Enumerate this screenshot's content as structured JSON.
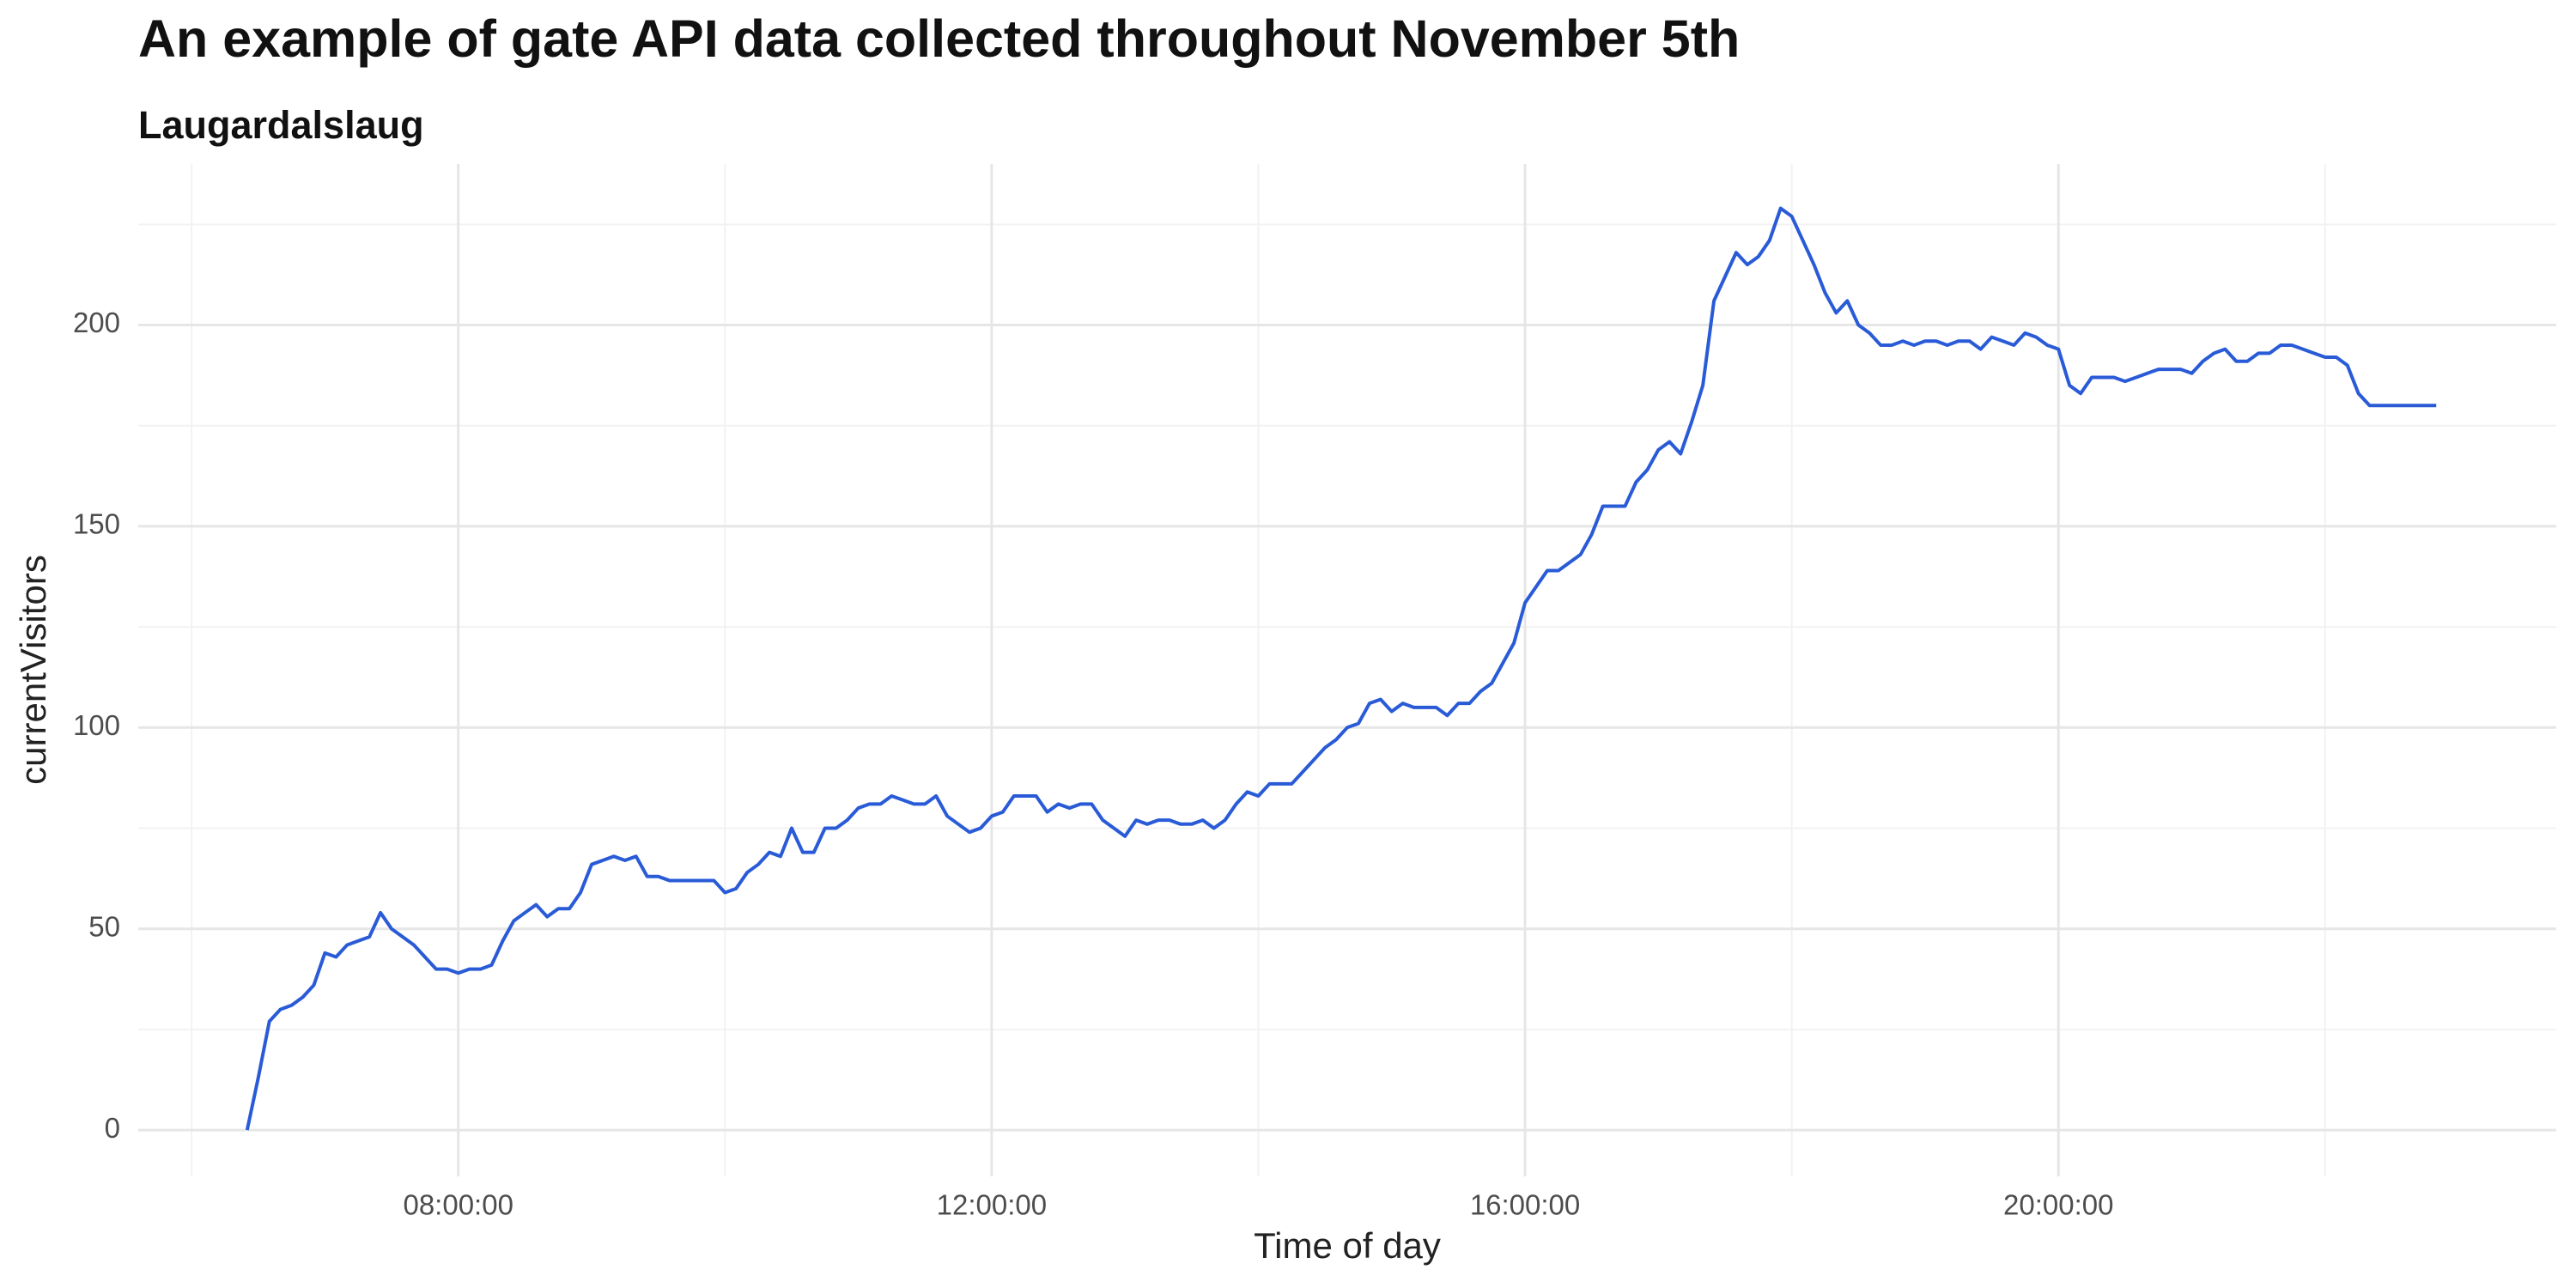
{
  "chart_data": {
    "type": "line",
    "title": "An example of gate API data collected throughout November 5th",
    "subtitle": "Laugardalslaug",
    "x_label": "Time of day",
    "y_label": "currentVisitors",
    "color": "#2a5bd7",
    "grid": true,
    "xlim": [
      "05:36:00",
      "23:44:00"
    ],
    "xticks": [
      "08:00:00",
      "12:00:00",
      "16:00:00",
      "20:00:00"
    ],
    "ylim": [
      -11.5,
      240
    ],
    "yticks": [
      0,
      50,
      100,
      150,
      200
    ],
    "x": [
      "06:25:00",
      "06:30:00",
      "06:35:00",
      "06:40:00",
      "06:45:00",
      "06:50:00",
      "06:55:00",
      "07:00:00",
      "07:05:00",
      "07:10:00",
      "07:15:00",
      "07:20:00",
      "07:25:00",
      "07:30:00",
      "07:35:00",
      "07:40:00",
      "07:45:00",
      "07:50:00",
      "07:55:00",
      "08:00:00",
      "08:05:00",
      "08:10:00",
      "08:15:00",
      "08:20:00",
      "08:25:00",
      "08:30:00",
      "08:35:00",
      "08:40:00",
      "08:45:00",
      "08:50:00",
      "08:55:00",
      "09:00:00",
      "09:05:00",
      "09:10:00",
      "09:15:00",
      "09:20:00",
      "09:25:00",
      "09:30:00",
      "09:35:00",
      "09:40:00",
      "09:45:00",
      "09:50:00",
      "09:55:00",
      "10:00:00",
      "10:05:00",
      "10:10:00",
      "10:15:00",
      "10:20:00",
      "10:25:00",
      "10:30:00",
      "10:35:00",
      "10:40:00",
      "10:45:00",
      "10:50:00",
      "10:55:00",
      "11:00:00",
      "11:05:00",
      "11:10:00",
      "11:15:00",
      "11:20:00",
      "11:25:00",
      "11:30:00",
      "11:35:00",
      "11:40:00",
      "11:45:00",
      "11:50:00",
      "11:55:00",
      "12:00:00",
      "12:05:00",
      "12:10:00",
      "12:15:00",
      "12:20:00",
      "12:25:00",
      "12:30:00",
      "12:35:00",
      "12:40:00",
      "12:45:00",
      "12:50:00",
      "12:55:00",
      "13:00:00",
      "13:05:00",
      "13:10:00",
      "13:15:00",
      "13:20:00",
      "13:25:00",
      "13:30:00",
      "13:35:00",
      "13:40:00",
      "13:45:00",
      "13:50:00",
      "13:55:00",
      "14:00:00",
      "14:05:00",
      "14:10:00",
      "14:15:00",
      "14:20:00",
      "14:25:00",
      "14:30:00",
      "14:35:00",
      "14:40:00",
      "14:45:00",
      "14:50:00",
      "14:55:00",
      "15:00:00",
      "15:05:00",
      "15:10:00",
      "15:15:00",
      "15:20:00",
      "15:25:00",
      "15:30:00",
      "15:35:00",
      "15:40:00",
      "15:45:00",
      "15:50:00",
      "15:55:00",
      "16:00:00",
      "16:05:00",
      "16:10:00",
      "16:15:00",
      "16:20:00",
      "16:25:00",
      "16:30:00",
      "16:35:00",
      "16:40:00",
      "16:45:00",
      "16:50:00",
      "16:55:00",
      "17:00:00",
      "17:05:00",
      "17:10:00",
      "17:15:00",
      "17:20:00",
      "17:25:00",
      "17:30:00",
      "17:35:00",
      "17:40:00",
      "17:45:00",
      "17:50:00",
      "17:55:00",
      "18:00:00",
      "18:05:00",
      "18:10:00",
      "18:15:00",
      "18:20:00",
      "18:25:00",
      "18:30:00",
      "18:35:00",
      "18:40:00",
      "18:45:00",
      "18:50:00",
      "18:55:00",
      "19:00:00",
      "19:05:00",
      "19:10:00",
      "19:15:00",
      "19:20:00",
      "19:25:00",
      "19:30:00",
      "19:35:00",
      "19:40:00",
      "19:45:00",
      "19:50:00",
      "19:55:00",
      "20:00:00",
      "20:05:00",
      "20:10:00",
      "20:15:00",
      "20:20:00",
      "20:25:00",
      "20:30:00",
      "20:35:00",
      "20:40:00",
      "20:45:00",
      "20:50:00",
      "20:55:00",
      "21:00:00",
      "21:05:00",
      "21:10:00",
      "21:15:00",
      "21:20:00",
      "21:25:00",
      "21:30:00",
      "21:35:00",
      "21:40:00",
      "21:45:00",
      "21:50:00",
      "21:55:00",
      "22:00:00",
      "22:05:00",
      "22:10:00",
      "22:15:00",
      "22:20:00",
      "22:25:00",
      "22:30:00",
      "22:35:00",
      "22:40:00",
      "22:45:00",
      "22:50:00"
    ],
    "values": [
      0,
      13,
      27,
      30,
      31,
      33,
      36,
      44,
      43,
      46,
      47,
      48,
      54,
      50,
      48,
      46,
      43,
      40,
      40,
      39,
      40,
      40,
      41,
      47,
      52,
      54,
      56,
      53,
      55,
      55,
      59,
      66,
      67,
      68,
      67,
      68,
      63,
      63,
      62,
      62,
      62,
      62,
      62,
      59,
      60,
      64,
      66,
      69,
      68,
      75,
      69,
      69,
      75,
      75,
      77,
      80,
      81,
      81,
      83,
      82,
      81,
      81,
      83,
      78,
      76,
      74,
      75,
      78,
      79,
      83,
      83,
      83,
      79,
      81,
      80,
      81,
      81,
      77,
      75,
      73,
      77,
      76,
      77,
      77,
      76,
      76,
      77,
      75,
      77,
      81,
      84,
      83,
      86,
      86,
      86,
      89,
      92,
      95,
      97,
      100,
      101,
      106,
      107,
      104,
      106,
      105,
      105,
      105,
      103,
      106,
      106,
      109,
      111,
      116,
      121,
      131,
      135,
      139,
      139,
      141,
      143,
      148,
      155,
      155,
      155,
      161,
      164,
      169,
      171,
      168,
      176,
      185,
      206,
      212,
      218,
      215,
      217,
      221,
      229,
      227,
      221,
      215,
      208,
      203,
      206,
      200,
      198,
      195,
      195,
      196,
      195,
      196,
      196,
      195,
      196,
      196,
      194,
      197,
      196,
      195,
      198,
      197,
      195,
      194,
      185,
      183,
      187,
      187,
      187,
      186,
      187,
      188,
      189,
      189,
      189,
      188,
      191,
      193,
      194,
      191,
      191,
      193,
      193,
      195,
      195,
      194,
      193,
      192,
      192,
      190,
      183,
      180,
      180,
      180,
      180,
      180,
      180,
      180
    ]
  }
}
